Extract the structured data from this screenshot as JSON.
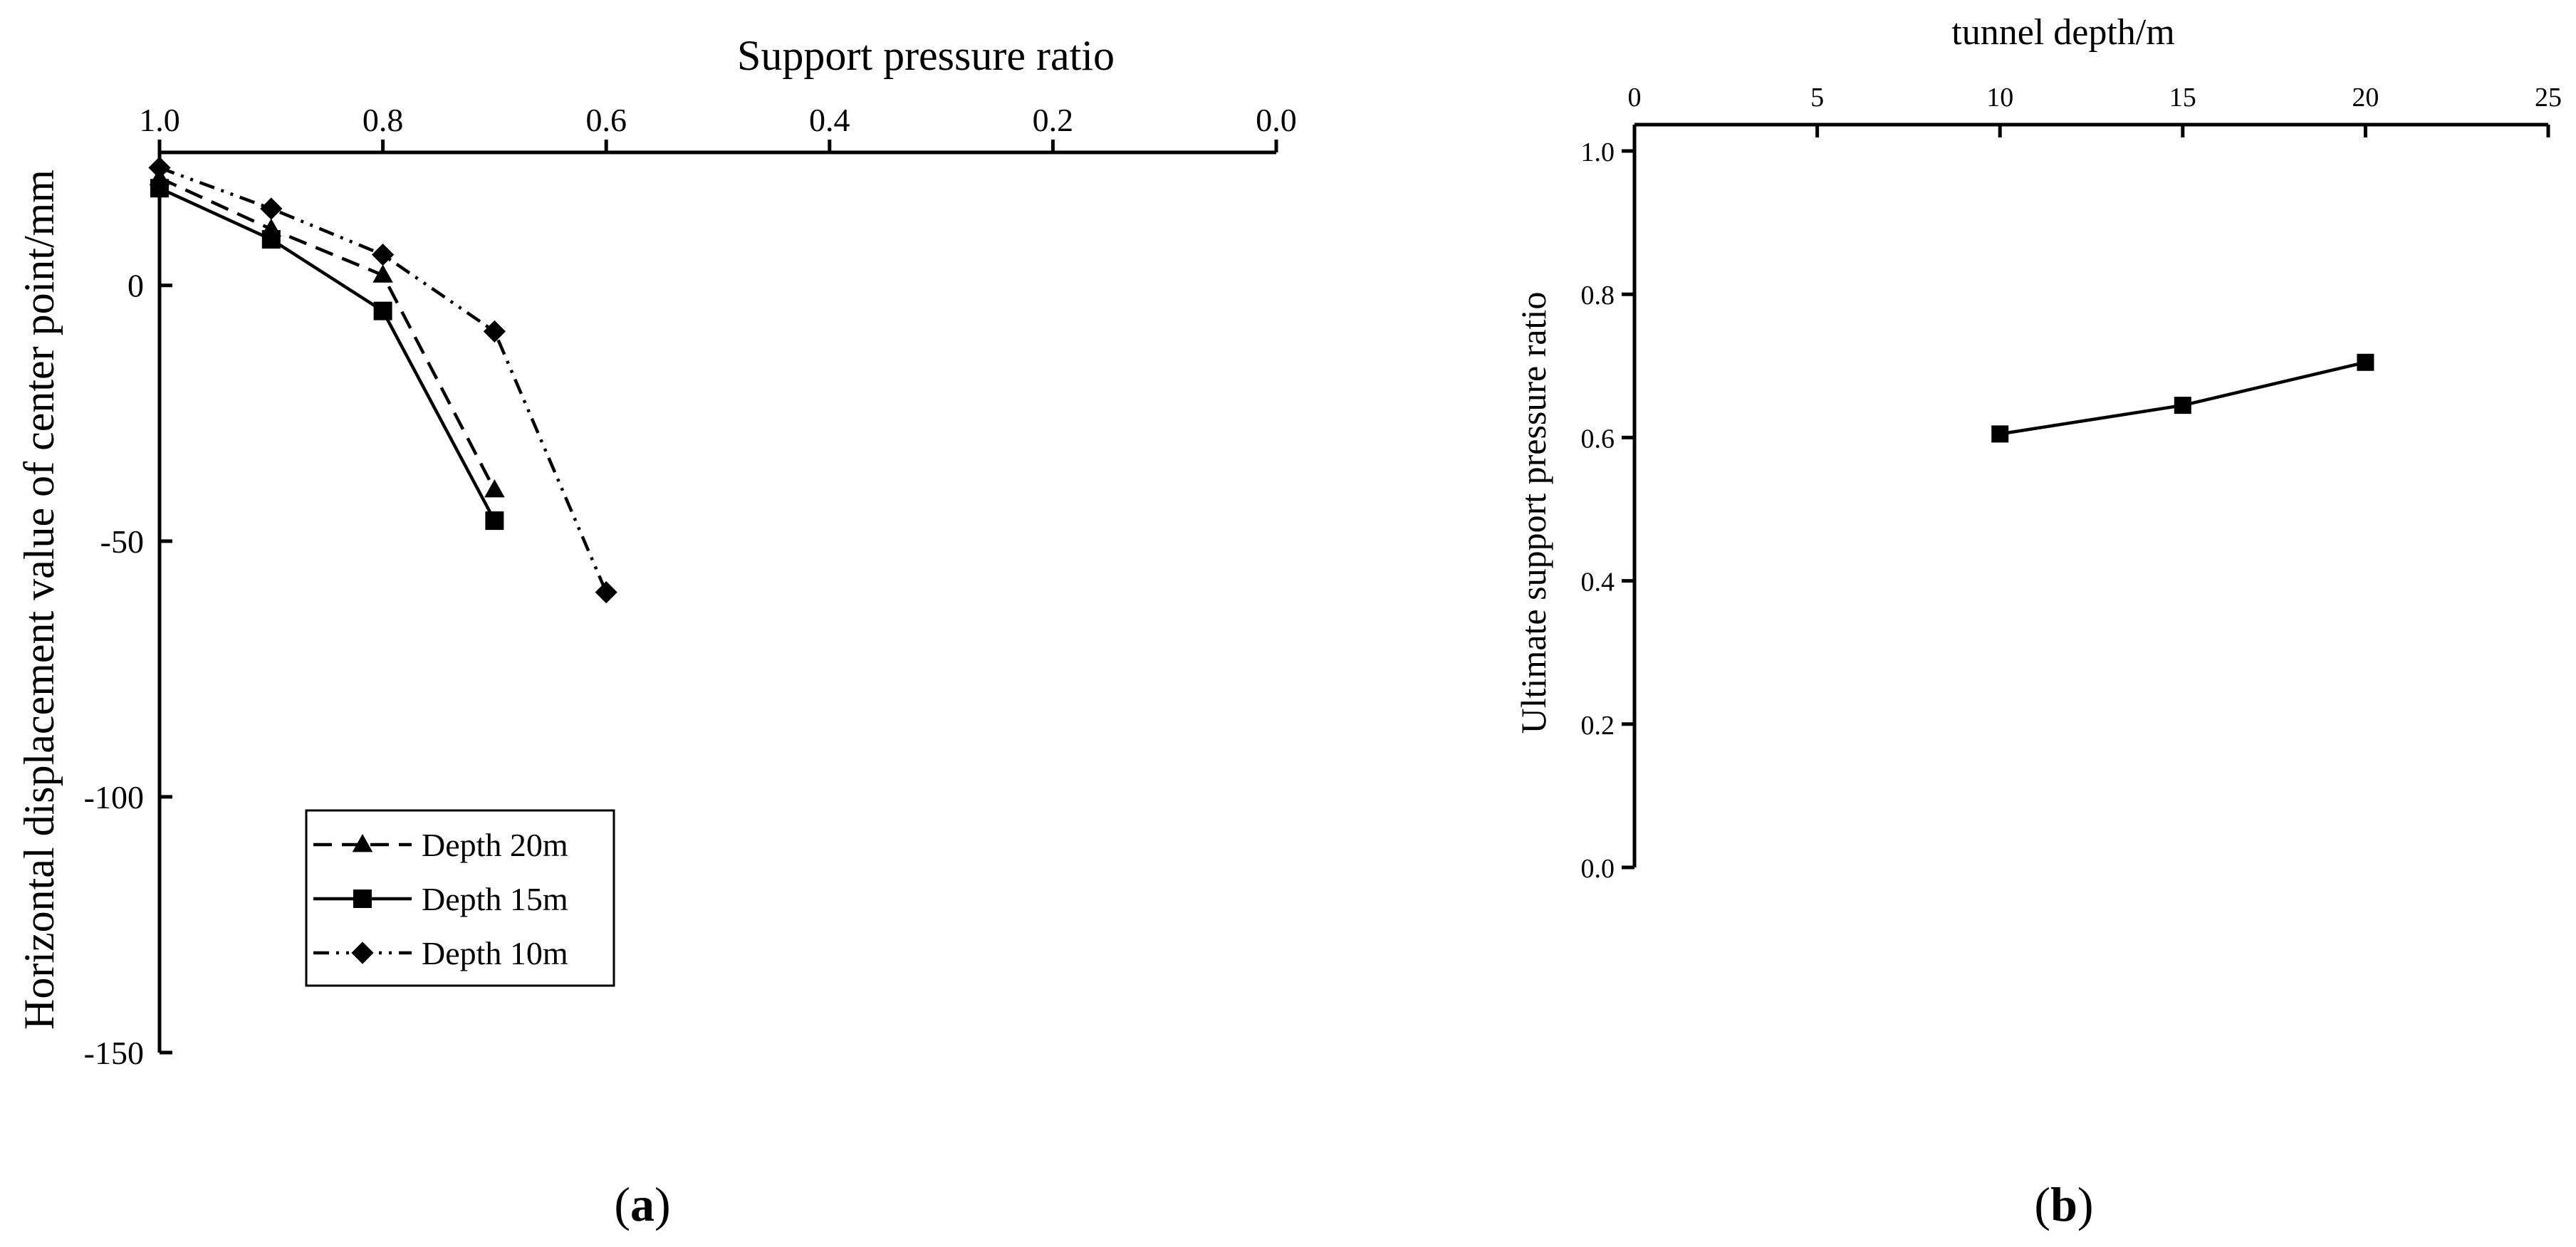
{
  "chart_data": [
    {
      "panel": "a",
      "type": "line",
      "title": "Support pressure ratio",
      "xlabel": "Support pressure ratio",
      "ylabel": "Horizontal displacement value of center point/mm",
      "x_axis_position": "top",
      "x_reversed": true,
      "xlim": [
        1.0,
        0.0
      ],
      "ylim": [
        -150,
        26
      ],
      "x_ticks": [
        "1.0",
        "0.8",
        "0.6",
        "0.4",
        "0.2",
        "0.0"
      ],
      "x_tick_values": [
        1.0,
        0.8,
        0.6,
        0.4,
        0.2,
        0.0
      ],
      "y_ticks": [
        "0",
        "-50",
        "-100",
        "-150"
      ],
      "y_tick_values": [
        0,
        -50,
        -100,
        -150
      ],
      "grid": false,
      "legend_position": "bottom-left",
      "series": [
        {
          "name": "Depth 20m",
          "marker": "triangle",
          "dash": "dashed",
          "x": [
            1.0,
            0.9,
            0.8,
            0.7
          ],
          "y": [
            21,
            11,
            2,
            -40
          ]
        },
        {
          "name": "Depth 15m",
          "marker": "square",
          "dash": "solid",
          "x": [
            1.0,
            0.9,
            0.8,
            0.7
          ],
          "y": [
            19,
            9,
            -5,
            -46
          ]
        },
        {
          "name": "Depth 10m",
          "marker": "diamond",
          "dash": "dash-dot-dot",
          "x": [
            1.0,
            0.9,
            0.8,
            0.7,
            0.6
          ],
          "y": [
            23,
            15,
            6,
            -9,
            -60
          ]
        }
      ],
      "panel_label": {
        "open": "(",
        "letter": "a",
        "close": ")"
      }
    },
    {
      "panel": "b",
      "type": "line",
      "title": "tunnel depth/m",
      "xlabel": "tunnel depth/m",
      "ylabel": "Ultimate support pressure ratio",
      "x_axis_position": "top",
      "xlim": [
        0,
        25
      ],
      "ylim": [
        0.0,
        1.0
      ],
      "x_ticks": [
        "0",
        "5",
        "10",
        "15",
        "20",
        "25"
      ],
      "x_tick_values": [
        0,
        5,
        10,
        15,
        20,
        25
      ],
      "y_ticks": [
        "1.0",
        "0.8",
        "0.6",
        "0.4",
        "0.2",
        "0.0"
      ],
      "y_tick_values": [
        1.0,
        0.8,
        0.6,
        0.4,
        0.2,
        0.0
      ],
      "grid": false,
      "series": [
        {
          "marker": "square",
          "dash": "solid",
          "x": [
            10,
            15,
            20
          ],
          "y": [
            0.605,
            0.645,
            0.705
          ]
        }
      ],
      "panel_label": {
        "open": "(",
        "letter": "b",
        "close": ")"
      }
    }
  ]
}
